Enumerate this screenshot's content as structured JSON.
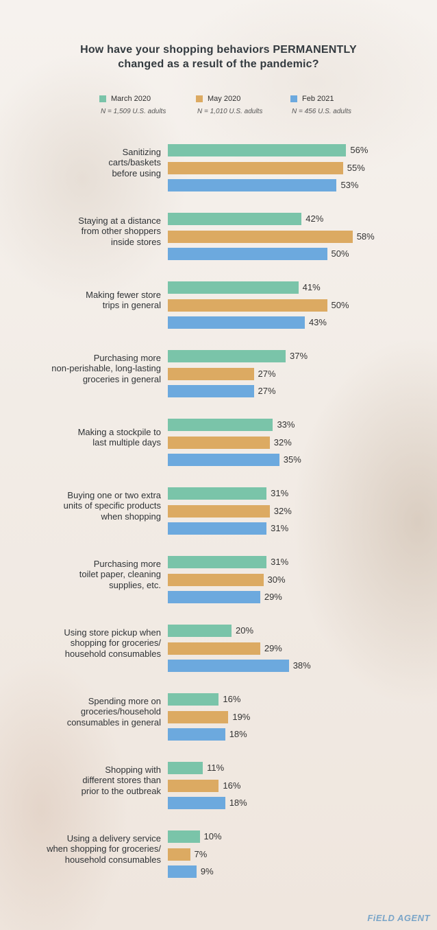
{
  "title_lines": [
    "How have your shopping behaviors PERMANENTLY",
    "changed as a result of the pandemic?"
  ],
  "colors": {
    "March 2020": "#7ac4a9",
    "May 2020": "#dcaa62",
    "Feb 2021": "#6ca9de"
  },
  "legend": [
    {
      "label": "March 2020",
      "note": "N = 1,509 U.S. adults"
    },
    {
      "label": "May 2020",
      "note": "N = 1,010 U.S. adults"
    },
    {
      "label": "Feb 2021",
      "note": "N = 456 U.S. adults"
    }
  ],
  "brand": "FiELD AGENT",
  "chart_data": {
    "type": "bar",
    "orientation": "horizontal",
    "title": "How have your shopping behaviors PERMANENTLY changed as a result of the pandemic?",
    "value_suffix": "%",
    "xlim": [
      0,
      60
    ],
    "grid": false,
    "legend_position": "top",
    "categories": [
      [
        "Sanitizing",
        "carts/baskets",
        "before using"
      ],
      [
        "Staying at a distance",
        "from other shoppers",
        "inside stores"
      ],
      [
        "Making fewer store",
        "trips in general"
      ],
      [
        "Purchasing more",
        "non-perishable, long-lasting",
        "groceries in general"
      ],
      [
        "Making a stockpile to",
        "last multiple days"
      ],
      [
        "Buying one or two extra",
        "units of specific products",
        "when shopping"
      ],
      [
        "Purchasing more",
        "toilet paper, cleaning",
        "supplies, etc."
      ],
      [
        "Using store pickup when",
        "shopping for groceries/",
        "household consumables"
      ],
      [
        "Spending more on",
        "groceries/household",
        "consumables in general"
      ],
      [
        "Shopping with",
        "different stores than",
        "prior to the outbreak"
      ],
      [
        "Using a delivery service",
        "when shopping for groceries/",
        "household consumables"
      ]
    ],
    "series": [
      {
        "name": "March 2020",
        "values": [
          56,
          42,
          41,
          37,
          33,
          31,
          31,
          20,
          16,
          11,
          10
        ]
      },
      {
        "name": "May 2020",
        "values": [
          55,
          58,
          50,
          27,
          32,
          32,
          30,
          29,
          19,
          16,
          7
        ]
      },
      {
        "name": "Feb 2021",
        "values": [
          53,
          50,
          43,
          27,
          35,
          31,
          29,
          38,
          18,
          18,
          9
        ]
      }
    ]
  }
}
